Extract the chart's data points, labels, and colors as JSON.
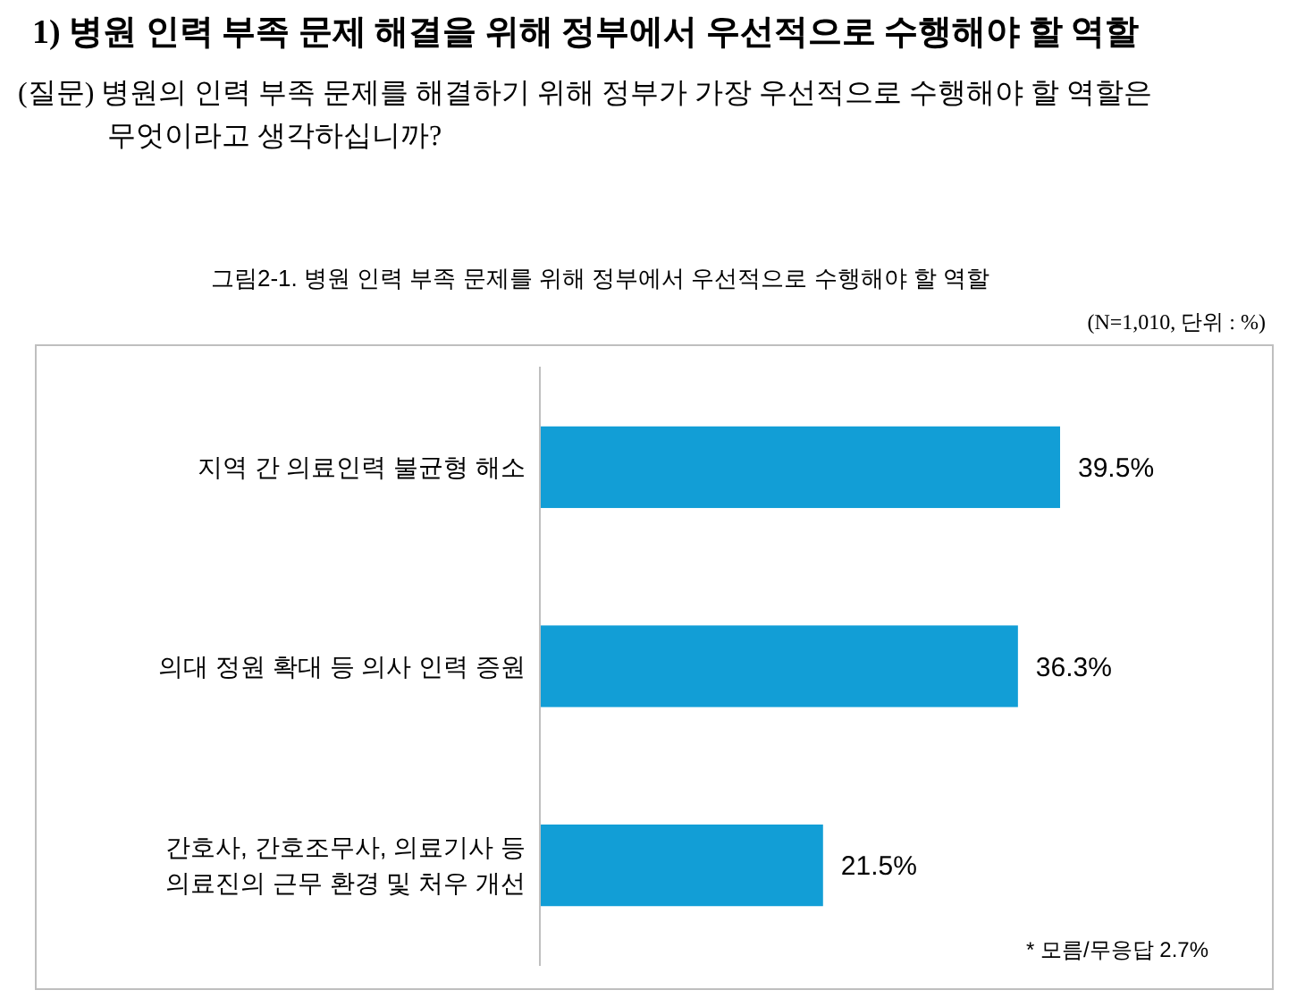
{
  "chart_data": {
    "type": "bar",
    "orientation": "horizontal",
    "title": "1) 병원 인력 부족 문제 해결을 위해 정부에서 우선적으로 수행해야 할 역할",
    "subtitle": "(질문) 병원의 인력 부족 문제를 해결하기 위해 정부가 가장 우선적으로 수행해야 할 역할은 무엇이라고 생각하십니까?",
    "categories": [
      "지역 간 의료인력 불균형 해소",
      "의대 정원 확대 등 의사 인력 증원",
      "간호사, 간호조무사, 의료기사 등 의료진의 근무 환경 및 처우 개선"
    ],
    "values": [
      39.5,
      36.3,
      21.5
    ],
    "value_labels": [
      "39.5%",
      "36.3%",
      "21.5%"
    ],
    "color": "#129ed6",
    "annotations": [
      "그림2-1. 병원 인력 부족 문제를 위해 정부에서 우선적으로 수행해야 할 역할",
      "(N=1,010, 단위 : %)",
      "* 모름/무응답 2.7%"
    ]
  }
}
